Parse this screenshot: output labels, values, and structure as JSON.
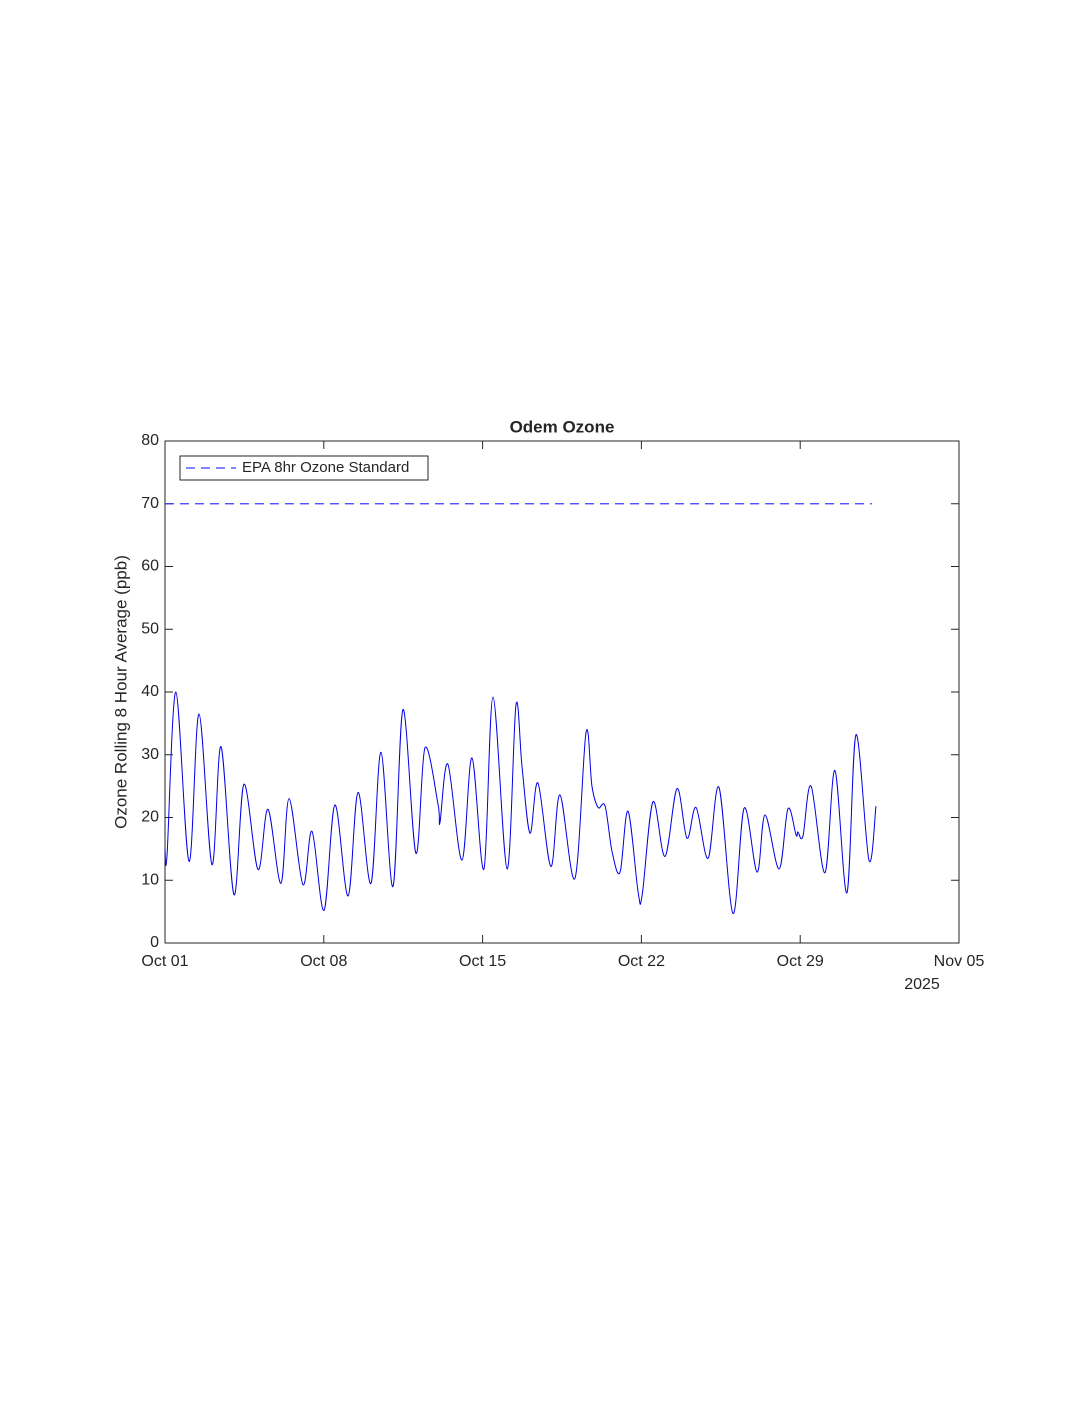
{
  "chart_data": {
    "type": "line",
    "title": "Odem Ozone",
    "ylabel": "Ozone Rolling 8 Hour Average (ppb)",
    "x_secondary_label": "2025",
    "xlim": [
      0,
      35
    ],
    "xticks": [
      {
        "value": 0,
        "label": "Oct 01"
      },
      {
        "value": 7,
        "label": "Oct 08"
      },
      {
        "value": 14,
        "label": "Oct 15"
      },
      {
        "value": 21,
        "label": "Oct 22"
      },
      {
        "value": 28,
        "label": "Oct 29"
      },
      {
        "value": 35,
        "label": "Nov 05"
      }
    ],
    "ylim": [
      0,
      80
    ],
    "yticks": [
      0,
      10,
      20,
      30,
      40,
      50,
      60,
      70,
      80
    ],
    "legend": "northwest",
    "grid": false,
    "series": [
      {
        "color": "#0000e6",
        "dash": false,
        "x": [
          0,
          0.09,
          0.48,
          1.06,
          1.5,
          2.07,
          2.47,
          3.04,
          3.48,
          4.1,
          4.54,
          5.11,
          5.47,
          6.08,
          6.48,
          7.01,
          7.49,
          8.07,
          8.51,
          9.08,
          9.52,
          10.05,
          10.49,
          11.06,
          11.46,
          12.04,
          12.12,
          12.47,
          13.09,
          13.53,
          14.06,
          14.46,
          15.08,
          15.47,
          15.74,
          16.09,
          16.44,
          17.01,
          17.41,
          18.07,
          18.56,
          18.82,
          19.09,
          19.4,
          19.71,
          20.06,
          20.41,
          20.86,
          21.04,
          21.51,
          22.04,
          22.57,
          23.01,
          23.41,
          23.94,
          24.42,
          25.04,
          25.53,
          26.1,
          26.45,
          27.07,
          27.46,
          27.82,
          27.9,
          28.12,
          28.48,
          29.09,
          29.53,
          30.06,
          30.46,
          31.03,
          31.34
        ],
        "values": [
          15,
          14,
          40,
          13,
          36.5,
          12.5,
          31.3,
          7.7,
          25.3,
          11.7,
          21.3,
          9.5,
          23,
          9.3,
          17.8,
          5.2,
          22,
          7.5,
          24,
          9.5,
          30.4,
          9,
          37.2,
          14.3,
          31.1,
          22,
          19.2,
          28.5,
          13.2,
          29.5,
          11.8,
          39.2,
          11.8,
          37.9,
          28,
          17.5,
          25.5,
          12.2,
          23.6,
          10.3,
          33.6,
          25,
          21.6,
          21.8,
          14.5,
          11.3,
          21,
          8,
          7.8,
          22.5,
          13.8,
          24.6,
          16.7,
          21.6,
          13.5,
          24.8,
          4.7,
          21.5,
          11.3,
          20.4,
          11.8,
          21.4,
          17.2,
          17.7,
          17,
          25,
          11.2,
          27.5,
          8,
          33.2,
          13.2,
          21.8
        ]
      },
      {
        "name": "EPA 8hr Ozone Standard",
        "color": "#3a3aff",
        "dash": true,
        "x": [
          0,
          31.16
        ],
        "values": [
          70,
          70
        ]
      }
    ]
  }
}
